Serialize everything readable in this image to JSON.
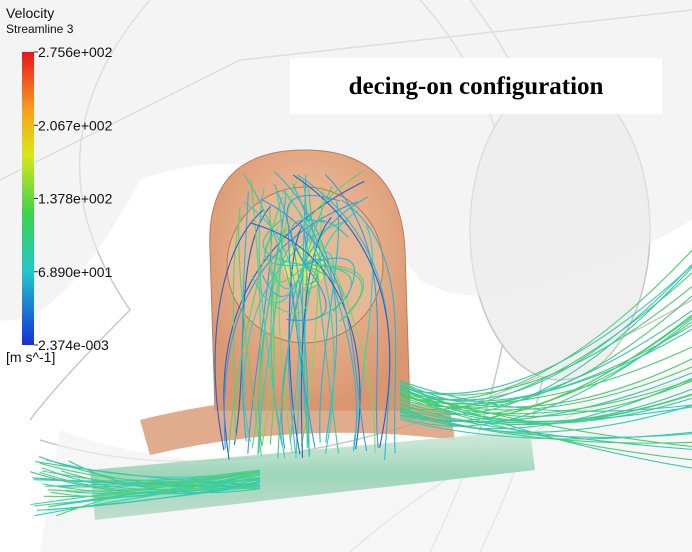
{
  "legend": {
    "title": "Velocity",
    "subtitle": "Streamline 3",
    "ticks": [
      "2.756e+002",
      "2.067e+002",
      "1.378e+002",
      "6.890e+001",
      "2.374e-003"
    ],
    "unit": "[m s^-1]"
  },
  "annotation": "decing-on configuration"
}
